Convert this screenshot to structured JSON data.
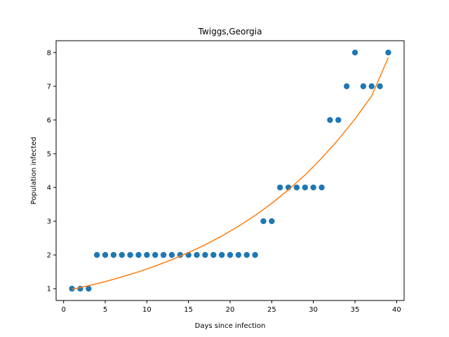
{
  "chart_data": {
    "type": "scatter",
    "title": "Twiggs,Georgia",
    "xlabel": "Days since infection",
    "ylabel": "Population infected",
    "xlim": [
      -0.9,
      40.9
    ],
    "ylim": [
      0.65,
      8.35
    ],
    "xticks": [
      0,
      5,
      10,
      15,
      20,
      25,
      30,
      35,
      40
    ],
    "yticks": [
      1,
      2,
      3,
      4,
      5,
      6,
      7,
      8
    ],
    "grid": false,
    "series": [
      {
        "kind": "scatter",
        "color": "#1f77b4",
        "x": [
          1,
          2,
          3,
          4,
          5,
          6,
          7,
          8,
          9,
          10,
          11,
          12,
          13,
          14,
          15,
          16,
          17,
          18,
          19,
          20,
          21,
          22,
          23,
          24,
          25,
          26,
          27,
          28,
          29,
          30,
          31,
          32,
          33,
          34,
          35,
          36,
          37,
          38,
          39
        ],
        "y": [
          1,
          1,
          1,
          2,
          2,
          2,
          2,
          2,
          2,
          2,
          2,
          2,
          2,
          2,
          2,
          2,
          2,
          2,
          2,
          2,
          2,
          2,
          2,
          3,
          3,
          4,
          4,
          4,
          4,
          4,
          4,
          6,
          6,
          7,
          8,
          7,
          7,
          7,
          8
        ]
      },
      {
        "kind": "line",
        "color": "#ff7f0e",
        "x": [
          1,
          3,
          5,
          7,
          9,
          11,
          13,
          15,
          17,
          19,
          21,
          23,
          25,
          27,
          29,
          31,
          33,
          35,
          37,
          39
        ],
        "y": [
          0.98,
          1.09,
          1.21,
          1.35,
          1.5,
          1.67,
          1.86,
          2.07,
          2.3,
          2.56,
          2.85,
          3.17,
          3.53,
          3.93,
          4.37,
          4.87,
          5.42,
          6.03,
          6.71,
          7.85
        ]
      }
    ]
  }
}
